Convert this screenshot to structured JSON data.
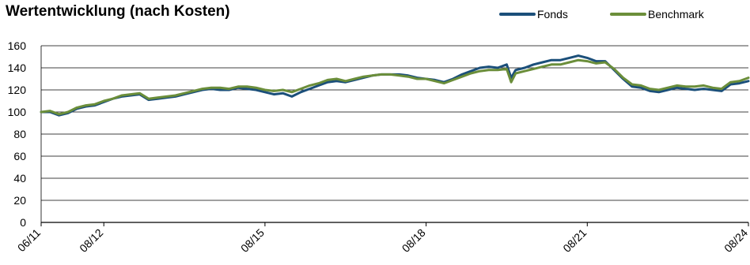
{
  "chart_data": {
    "type": "line",
    "title": "Wertentwicklung (nach Kosten)",
    "xlabel": "",
    "ylabel": "",
    "ylim": [
      0,
      160
    ],
    "yticks": [
      0,
      20,
      40,
      60,
      80,
      100,
      120,
      140,
      160
    ],
    "xticks": [
      "06/11",
      "08/12",
      "08/15",
      "08/18",
      "08/21",
      "08/24"
    ],
    "xtick_dates": [
      "2011-06",
      "2012-08",
      "2015-08",
      "2018-08",
      "2021-08",
      "2024-08"
    ],
    "grid": true,
    "legend_position": "top-right",
    "series": [
      {
        "name": "Fonds",
        "color": "#1b4f7a",
        "x": [
          "2011-06",
          "2011-08",
          "2011-10",
          "2011-12",
          "2012-02",
          "2012-04",
          "2012-06",
          "2012-08",
          "2012-10",
          "2012-12",
          "2013-02",
          "2013-04",
          "2013-06",
          "2013-08",
          "2013-10",
          "2013-12",
          "2014-02",
          "2014-04",
          "2014-06",
          "2014-08",
          "2014-10",
          "2014-12",
          "2015-02",
          "2015-04",
          "2015-06",
          "2015-08",
          "2015-10",
          "2015-12",
          "2016-02",
          "2016-04",
          "2016-06",
          "2016-08",
          "2016-10",
          "2016-12",
          "2017-02",
          "2017-04",
          "2017-06",
          "2017-08",
          "2017-10",
          "2017-12",
          "2018-02",
          "2018-04",
          "2018-06",
          "2018-08",
          "2018-10",
          "2018-12",
          "2019-02",
          "2019-04",
          "2019-06",
          "2019-08",
          "2019-10",
          "2019-12",
          "2020-02",
          "2020-03",
          "2020-04",
          "2020-06",
          "2020-08",
          "2020-10",
          "2020-12",
          "2021-02",
          "2021-04",
          "2021-06",
          "2021-08",
          "2021-10",
          "2021-12",
          "2022-02",
          "2022-04",
          "2022-06",
          "2022-08",
          "2022-10",
          "2022-12",
          "2023-02",
          "2023-04",
          "2023-06",
          "2023-08",
          "2023-10",
          "2023-12",
          "2024-02",
          "2024-04",
          "2024-06",
          "2024-08"
        ],
        "values": [
          100,
          100,
          97,
          99,
          103,
          105,
          106,
          109,
          112,
          114,
          115,
          116,
          111,
          112,
          113,
          114,
          116,
          118,
          120,
          121,
          120,
          120,
          122,
          121,
          120,
          118,
          116,
          117,
          114,
          118,
          121,
          124,
          127,
          128,
          127,
          129,
          131,
          133,
          134,
          134,
          134,
          133,
          131,
          130,
          129,
          127,
          130,
          134,
          137,
          140,
          141,
          140,
          143,
          131,
          138,
          140,
          143,
          145,
          147,
          147,
          149,
          151,
          149,
          146,
          146,
          138,
          130,
          123,
          122,
          119,
          118,
          120,
          122,
          121,
          120,
          121,
          120,
          119,
          125,
          126,
          128
        ]
      },
      {
        "name": "Benchmark",
        "color": "#6b8e3a",
        "x": [
          "2011-06",
          "2011-08",
          "2011-10",
          "2011-12",
          "2012-02",
          "2012-04",
          "2012-06",
          "2012-08",
          "2012-10",
          "2012-12",
          "2013-02",
          "2013-04",
          "2013-06",
          "2013-08",
          "2013-10",
          "2013-12",
          "2014-02",
          "2014-04",
          "2014-06",
          "2014-08",
          "2014-10",
          "2014-12",
          "2015-02",
          "2015-04",
          "2015-06",
          "2015-08",
          "2015-10",
          "2015-12",
          "2016-02",
          "2016-04",
          "2016-06",
          "2016-08",
          "2016-10",
          "2016-12",
          "2017-02",
          "2017-04",
          "2017-06",
          "2017-08",
          "2017-10",
          "2017-12",
          "2018-02",
          "2018-04",
          "2018-06",
          "2018-08",
          "2018-10",
          "2018-12",
          "2019-02",
          "2019-04",
          "2019-06",
          "2019-08",
          "2019-10",
          "2019-12",
          "2020-02",
          "2020-03",
          "2020-04",
          "2020-06",
          "2020-08",
          "2020-10",
          "2020-12",
          "2021-02",
          "2021-04",
          "2021-06",
          "2021-08",
          "2021-10",
          "2021-12",
          "2022-02",
          "2022-04",
          "2022-06",
          "2022-08",
          "2022-10",
          "2022-12",
          "2023-02",
          "2023-04",
          "2023-06",
          "2023-08",
          "2023-10",
          "2023-12",
          "2024-02",
          "2024-04",
          "2024-06",
          "2024-08"
        ],
        "values": [
          100,
          101,
          98,
          100,
          104,
          106,
          107,
          110,
          112,
          115,
          116,
          117,
          112,
          113,
          114,
          115,
          117,
          119,
          121,
          122,
          122,
          121,
          123,
          123,
          122,
          120,
          119,
          120,
          118,
          121,
          124,
          126,
          129,
          130,
          128,
          130,
          132,
          133,
          134,
          134,
          133,
          132,
          130,
          130,
          128,
          126,
          129,
          132,
          135,
          137,
          138,
          138,
          139,
          127,
          135,
          137,
          139,
          141,
          143,
          143,
          145,
          147,
          146,
          144,
          145,
          139,
          131,
          125,
          124,
          121,
          120,
          122,
          124,
          123,
          123,
          124,
          122,
          121,
          127,
          128,
          131
        ]
      }
    ]
  }
}
